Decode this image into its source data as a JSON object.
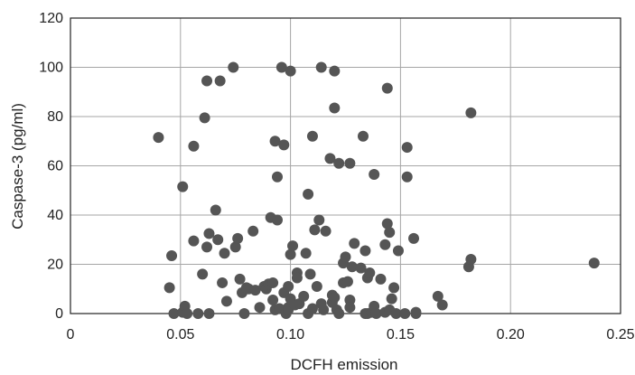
{
  "chart_data": {
    "type": "scatter",
    "xlabel": "DCFH emission",
    "ylabel": "Caspase-3 (pg/ml)",
    "xlim": [
      0,
      0.25
    ],
    "ylim": [
      0,
      120
    ],
    "xticks": [
      0,
      0.05,
      0.1,
      0.15,
      0.2,
      0.25
    ],
    "xtick_labels": [
      "0",
      "0.05",
      "0.10",
      "0.15",
      "0.20",
      "0.25"
    ],
    "yticks": [
      0,
      20,
      40,
      60,
      80,
      100,
      120
    ],
    "ytick_labels": [
      "0",
      "20",
      "40",
      "60",
      "80",
      "100",
      "120"
    ],
    "grid": true,
    "colors": {
      "marker": "#555555",
      "grid": "#a6a6a6",
      "axis": "#222222"
    },
    "series": [
      {
        "points": [
          [
            0.04,
            71.5
          ],
          [
            0.045,
            10.5
          ],
          [
            0.046,
            23.5
          ],
          [
            0.047,
            0
          ],
          [
            0.051,
            51.5
          ],
          [
            0.051,
            0.5
          ],
          [
            0.052,
            3
          ],
          [
            0.053,
            0
          ],
          [
            0.056,
            68
          ],
          [
            0.056,
            29.5
          ],
          [
            0.058,
            0
          ],
          [
            0.06,
            16
          ],
          [
            0.061,
            79.5
          ],
          [
            0.062,
            94.5
          ],
          [
            0.062,
            27
          ],
          [
            0.063,
            32.5
          ],
          [
            0.063,
            0
          ],
          [
            0.066,
            42
          ],
          [
            0.067,
            30
          ],
          [
            0.068,
            94.5
          ],
          [
            0.069,
            12.5
          ],
          [
            0.07,
            24.5
          ],
          [
            0.071,
            5
          ],
          [
            0.074,
            100
          ],
          [
            0.075,
            27
          ],
          [
            0.076,
            30.5
          ],
          [
            0.077,
            14
          ],
          [
            0.078,
            8.5
          ],
          [
            0.079,
            0
          ],
          [
            0.08,
            10.5
          ],
          [
            0.081,
            10
          ],
          [
            0.083,
            33.5
          ],
          [
            0.084,
            9.5
          ],
          [
            0.086,
            2.5
          ],
          [
            0.088,
            11
          ],
          [
            0.089,
            10
          ],
          [
            0.09,
            12
          ],
          [
            0.091,
            39
          ],
          [
            0.092,
            5.5
          ],
          [
            0.092,
            12.5
          ],
          [
            0.093,
            70
          ],
          [
            0.093,
            1.5
          ],
          [
            0.094,
            55.5
          ],
          [
            0.094,
            38
          ],
          [
            0.095,
            2
          ],
          [
            0.096,
            100
          ],
          [
            0.097,
            68.5
          ],
          [
            0.097,
            8.5
          ],
          [
            0.098,
            0
          ],
          [
            0.099,
            11
          ],
          [
            0.099,
            2.5
          ],
          [
            0.099,
            1.5
          ],
          [
            0.1,
            98.5
          ],
          [
            0.1,
            24
          ],
          [
            0.1,
            6
          ],
          [
            0.101,
            27.5
          ],
          [
            0.102,
            3.5
          ],
          [
            0.103,
            16.5
          ],
          [
            0.103,
            14.5
          ],
          [
            0.104,
            4
          ],
          [
            0.106,
            7
          ],
          [
            0.107,
            24.5
          ],
          [
            0.108,
            48.5
          ],
          [
            0.108,
            0
          ],
          [
            0.109,
            16
          ],
          [
            0.11,
            72
          ],
          [
            0.11,
            2
          ],
          [
            0.111,
            34
          ],
          [
            0.112,
            11
          ],
          [
            0.113,
            38
          ],
          [
            0.114,
            100
          ],
          [
            0.114,
            4
          ],
          [
            0.115,
            1.5
          ],
          [
            0.116,
            33.5
          ],
          [
            0.118,
            63
          ],
          [
            0.119,
            7.5
          ],
          [
            0.119,
            4.5
          ],
          [
            0.12,
            83.5
          ],
          [
            0.12,
            98.5
          ],
          [
            0.12,
            6.5
          ],
          [
            0.121,
            1.5
          ],
          [
            0.122,
            61
          ],
          [
            0.122,
            0
          ],
          [
            0.124,
            20.5
          ],
          [
            0.124,
            12.5
          ],
          [
            0.125,
            23
          ],
          [
            0.126,
            13
          ],
          [
            0.127,
            61
          ],
          [
            0.127,
            5.5
          ],
          [
            0.127,
            2.5
          ],
          [
            0.128,
            19
          ],
          [
            0.129,
            28.5
          ],
          [
            0.132,
            18.5
          ],
          [
            0.133,
            72
          ],
          [
            0.134,
            25.5
          ],
          [
            0.134,
            0
          ],
          [
            0.135,
            14.5
          ],
          [
            0.135,
            0
          ],
          [
            0.136,
            16.5
          ],
          [
            0.137,
            0.5
          ],
          [
            0.138,
            56.5
          ],
          [
            0.138,
            3
          ],
          [
            0.139,
            0
          ],
          [
            0.141,
            14
          ],
          [
            0.143,
            28
          ],
          [
            0.143,
            0.5
          ],
          [
            0.144,
            91.5
          ],
          [
            0.144,
            36.5
          ],
          [
            0.145,
            33
          ],
          [
            0.145,
            1.5
          ],
          [
            0.146,
            6
          ],
          [
            0.147,
            10.5
          ],
          [
            0.148,
            0
          ],
          [
            0.149,
            25.5
          ],
          [
            0.152,
            0
          ],
          [
            0.153,
            67.5
          ],
          [
            0.153,
            55.5
          ],
          [
            0.156,
            30.5
          ],
          [
            0.157,
            0.5
          ],
          [
            0.157,
            0
          ],
          [
            0.167,
            7
          ],
          [
            0.169,
            3.5
          ],
          [
            0.181,
            19
          ],
          [
            0.182,
            81.5
          ],
          [
            0.182,
            22
          ],
          [
            0.238,
            20.5
          ]
        ]
      }
    ]
  }
}
